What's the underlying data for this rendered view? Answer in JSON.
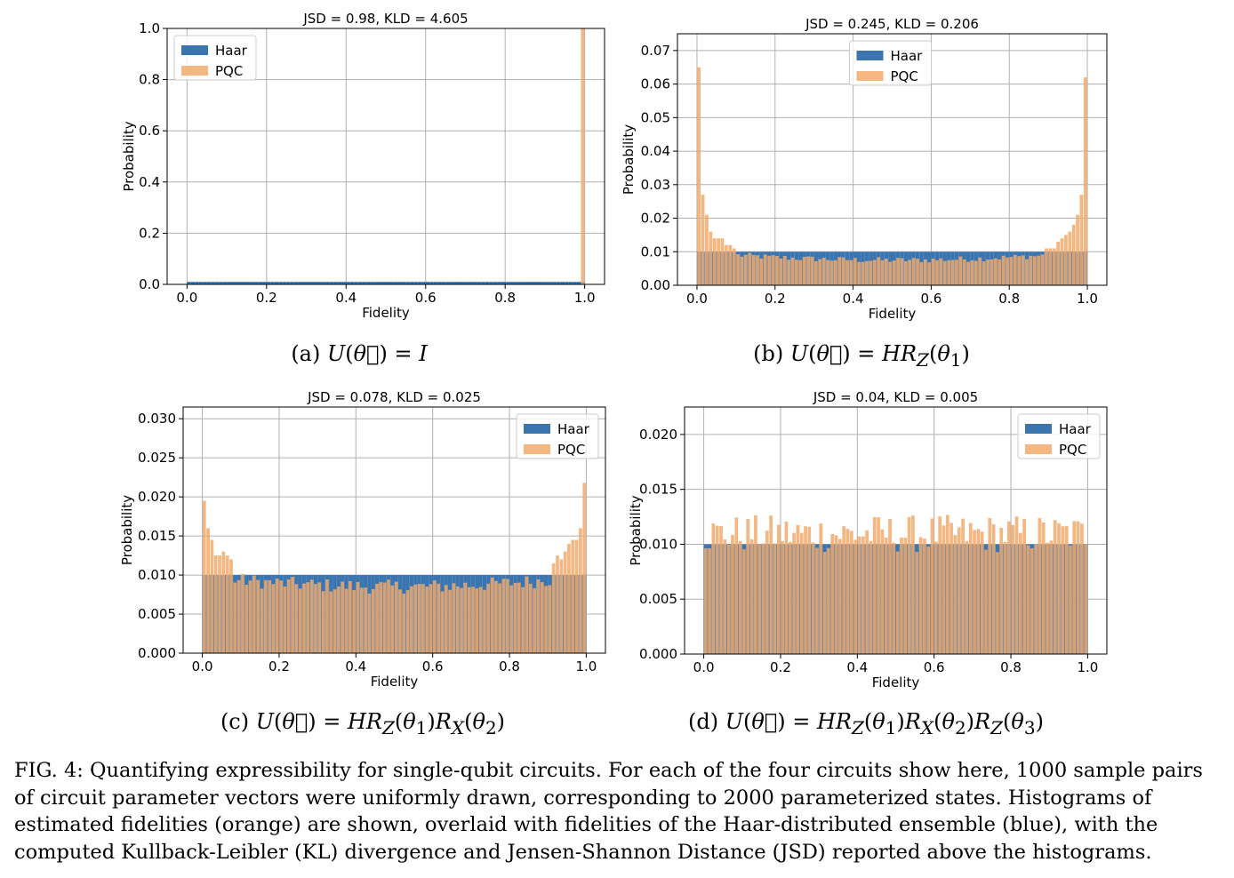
{
  "chart_data": [
    {
      "type": "histogram",
      "title": "JSD = 0.98, KLD = 4.605",
      "xlabel": "Fidelity",
      "ylabel": "Probability",
      "xlim": [
        -0.05,
        1.05
      ],
      "ylim": [
        0,
        1.0
      ],
      "xticks": [
        "0.0",
        "0.2",
        "0.4",
        "0.6",
        "0.8",
        "1.0"
      ],
      "yticks": [
        "0.0",
        "0.2",
        "0.4",
        "0.6",
        "0.8",
        "1.0"
      ],
      "grid": true,
      "legend_position": "upper-left",
      "series": [
        {
          "name": "Haar",
          "color": "#3a75b0",
          "bins": 100,
          "values": "uniform 0.010 per bin"
        },
        {
          "name": "PQC",
          "color": "#f2aa6b",
          "bins": 100,
          "values": "0 for all bins except last bin (0.99-1.0) = 1.0"
        }
      ],
      "caption": "(a) U(θ⃗) = I"
    },
    {
      "type": "histogram",
      "title": "JSD = 0.245, KLD = 0.206",
      "xlabel": "Fidelity",
      "ylabel": "Probability",
      "xlim": [
        -0.05,
        1.05
      ],
      "ylim": [
        0,
        0.075
      ],
      "xticks": [
        "0.0",
        "0.2",
        "0.4",
        "0.6",
        "0.8",
        "1.0"
      ],
      "yticks": [
        "0.00",
        "0.01",
        "0.02",
        "0.03",
        "0.04",
        "0.05",
        "0.06",
        "0.07"
      ],
      "grid": true,
      "legend_position": "upper-center",
      "series": [
        {
          "name": "Haar",
          "color": "#3a75b0",
          "bins": 100,
          "values": "uniform 0.010 per bin"
        },
        {
          "name": "PQC",
          "color": "#f2aa6b",
          "bins": 100,
          "first_bins": [
            0.065,
            0.027,
            0.021,
            0.016,
            0.014,
            0.014,
            0.014,
            0.012,
            0.012,
            0.011
          ],
          "last_bins": [
            0.011,
            0.011,
            0.011,
            0.013,
            0.014,
            0.015,
            0.016,
            0.018,
            0.021,
            0.027,
            0.062
          ],
          "middle_typical": 0.0075
        }
      ],
      "caption": "(b) U(θ⃗) = HR_Z(θ₁)"
    },
    {
      "type": "histogram",
      "title": "JSD = 0.078, KLD = 0.025",
      "xlabel": "Fidelity",
      "ylabel": "Probability",
      "xlim": [
        -0.05,
        1.05
      ],
      "ylim": [
        0,
        0.0315
      ],
      "xticks": [
        "0.0",
        "0.2",
        "0.4",
        "0.6",
        "0.8",
        "1.0"
      ],
      "yticks": [
        "0.000",
        "0.005",
        "0.010",
        "0.015",
        "0.020",
        "0.025",
        "0.030"
      ],
      "grid": true,
      "legend_position": "upper-right",
      "series": [
        {
          "name": "Haar",
          "color": "#3a75b0",
          "bins": 100,
          "values": "uniform 0.010 per bin"
        },
        {
          "name": "PQC",
          "color": "#f2aa6b",
          "bins": 100,
          "first_bins": [
            0.0195,
            0.016,
            0.0145,
            0.0125,
            0.0125,
            0.013,
            0.0125,
            0.012
          ],
          "last_bins": [
            0.0115,
            0.0125,
            0.012,
            0.013,
            0.014,
            0.0145,
            0.0145,
            0.016,
            0.0218
          ],
          "middle_typical": 0.0085
        }
      ],
      "caption": "(c) U(θ⃗) = HR_Z(θ₁)R_X(θ₂)"
    },
    {
      "type": "histogram",
      "title": "JSD = 0.04, KLD = 0.005",
      "xlabel": "Fidelity",
      "ylabel": "Probability",
      "xlim": [
        -0.05,
        1.05
      ],
      "ylim": [
        0,
        0.0225
      ],
      "xticks": [
        "0.0",
        "0.2",
        "0.4",
        "0.6",
        "0.8",
        "1.0"
      ],
      "yticks": [
        "0.000",
        "0.005",
        "0.010",
        "0.015",
        "0.020"
      ],
      "grid": true,
      "legend_position": "upper-right",
      "series": [
        {
          "name": "Haar",
          "color": "#3a75b0",
          "bins": 100,
          "values": "uniform 0.010 per bin"
        },
        {
          "name": "PQC",
          "color": "#f2aa6b",
          "bins": 100,
          "range": [
            0.0092,
            0.0127
          ],
          "middle_typical": 0.01
        }
      ],
      "caption": "(d) U(θ⃗) = HR_Z(θ₁)R_X(θ₂)R_Z(θ₃)"
    }
  ],
  "figure_caption": "FIG. 4: Quantifying expressibility for single-qubit circuits. For each of the four circuits show here, 1000 sample pairs of circuit parameter vectors were uniformly drawn, corresponding to 2000 parameterized states. Histograms of estimated fidelities (orange) are shown, overlaid with fidelities of the Haar-distributed ensemble (blue), with the computed Kullback-Leibler (KL) divergence and Jensen-Shannon Distance (JSD) reported above the histograms."
}
